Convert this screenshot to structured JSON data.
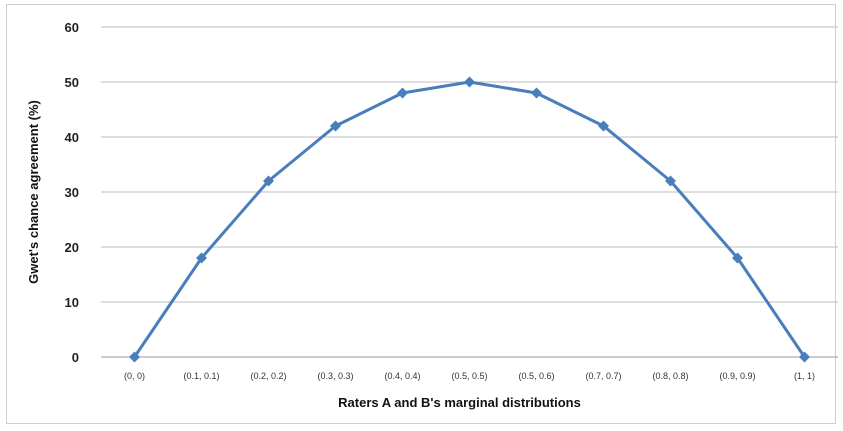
{
  "chart_data": {
    "type": "line",
    "categories": [
      "(0, 0)",
      "(0.1, 0.1)",
      "(0.2, 0.2)",
      "(0.3, 0.3)",
      "(0.4, 0.4)",
      "(0.5, 0.5)",
      "(0.5, 0.6)",
      "(0.7, 0.7)",
      "(0.8, 0.8)",
      "(0.9, 0.9)",
      "(1, 1)"
    ],
    "series": [
      {
        "values": [
          0,
          18,
          32,
          42,
          48,
          50,
          48,
          42,
          32,
          18,
          0
        ],
        "color": "#4a7ebb"
      }
    ],
    "xlabel": "Raters A and B's marginal distributions",
    "ylabel": "Gwet's chance agreement (%)",
    "ylim": [
      0,
      60
    ],
    "yticks": [
      "0",
      "10",
      "20",
      "30",
      "40",
      "50",
      "60"
    ],
    "grid": true,
    "legend": "none",
    "marker": "diamond"
  }
}
